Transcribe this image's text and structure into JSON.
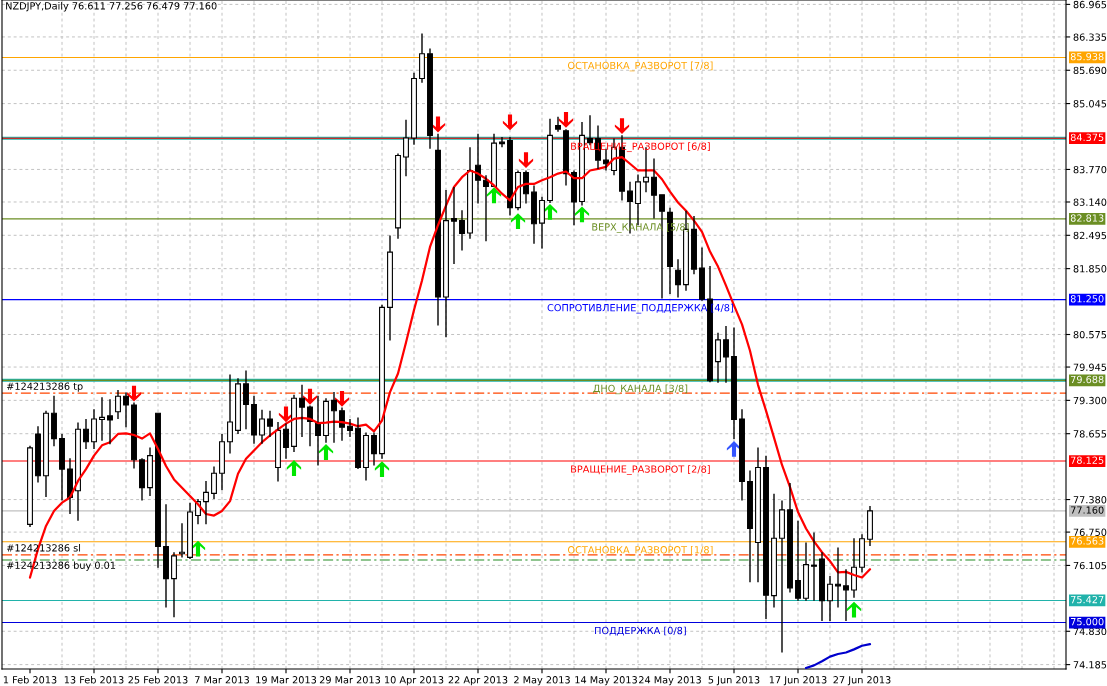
{
  "chart_data": {
    "type": "candlestick",
    "title": "NZDJPY,Daily 76.611 77.256 76.479 77.160",
    "color": "#000000",
    "categories": [
      "1 Feb 2013",
      null,
      null,
      null,
      null,
      null,
      null,
      null,
      "13 Feb 2013",
      null,
      null,
      null,
      null,
      null,
      null,
      null,
      "25 Feb 2013",
      null,
      null,
      null,
      null,
      null,
      null,
      null,
      "7 Mar 2013",
      null,
      null,
      null,
      null,
      null,
      null,
      null,
      "19 Mar 2013",
      null,
      null,
      null,
      null,
      null,
      null,
      null,
      "29 Mar 2013",
      null,
      null,
      null,
      null,
      null,
      null,
      null,
      "10 Apr 2013",
      null,
      null,
      null,
      null,
      null,
      null,
      null,
      "22 Apr 2013",
      null,
      null,
      null,
      null,
      null,
      null,
      null,
      "2 May 2013",
      null,
      null,
      null,
      null,
      null,
      null,
      null,
      "14 May 2013",
      null,
      null,
      null,
      null,
      null,
      null,
      null,
      "24 May 2013",
      null,
      null,
      null,
      null,
      null,
      null,
      null,
      "5 Jun 2013",
      null,
      null,
      null,
      null,
      null,
      null,
      null,
      "17 Jun 2013",
      null,
      null,
      null,
      null,
      null,
      null,
      null,
      "27 Jun 2013",
      null
    ],
    "ohlc": [
      [
        76.9,
        78.42,
        76.85,
        78.38
      ],
      [
        78.65,
        78.8,
        77.71,
        77.84
      ],
      [
        77.84,
        79.1,
        77.43,
        79.05
      ],
      [
        79.05,
        79.39,
        78.41,
        78.56
      ],
      [
        78.56,
        78.65,
        77.36,
        77.97
      ],
      [
        77.97,
        78.18,
        77.1,
        77.42
      ],
      [
        77.55,
        78.87,
        76.97,
        78.74
      ],
      [
        78.74,
        78.94,
        78.36,
        78.5
      ],
      [
        78.5,
        79.13,
        78.36,
        78.94
      ],
      [
        78.93,
        79.36,
        78.52,
        78.97
      ],
      [
        79.0,
        79.32,
        78.45,
        78.92
      ],
      [
        79.08,
        79.5,
        78.94,
        79.38
      ],
      [
        79.38,
        79.45,
        78.78,
        79.21
      ],
      [
        79.21,
        79.26,
        77.98,
        78.15
      ],
      [
        78.15,
        78.18,
        77.36,
        77.61
      ],
      [
        77.61,
        78.39,
        77.45,
        78.23
      ],
      [
        79.05,
        79.05,
        76.06,
        76.47
      ],
      [
        76.47,
        77.29,
        75.29,
        75.85
      ],
      [
        75.85,
        76.36,
        75.1,
        76.29
      ],
      [
        76.33,
        76.92,
        76.26,
        76.36
      ],
      [
        76.26,
        77.32,
        76.23,
        77.14
      ],
      [
        77.07,
        77.39,
        76.9,
        77.34
      ],
      [
        77.34,
        77.74,
        76.9,
        77.52
      ],
      [
        77.5,
        78.02,
        77.39,
        77.89
      ],
      [
        77.89,
        78.65,
        77.56,
        78.5
      ],
      [
        78.5,
        79.8,
        78.27,
        78.88
      ],
      [
        78.72,
        79.73,
        78.65,
        79.62
      ],
      [
        79.62,
        79.88,
        78.74,
        79.22
      ],
      [
        79.22,
        79.39,
        78.46,
        78.63
      ],
      [
        78.63,
        79.12,
        78.46,
        78.94
      ],
      [
        78.94,
        79.1,
        78.59,
        78.8
      ],
      [
        78.0,
        78.88,
        77.73,
        78.72
      ],
      [
        78.74,
        78.85,
        78.17,
        78.39
      ],
      [
        78.41,
        79.41,
        78.3,
        79.34
      ],
      [
        79.34,
        79.6,
        78.59,
        79.17
      ],
      [
        79.17,
        79.2,
        78.41,
        78.89
      ],
      [
        78.87,
        79.39,
        78.04,
        78.62
      ],
      [
        78.62,
        79.34,
        78.48,
        79.28
      ],
      [
        79.3,
        79.46,
        78.48,
        79.1
      ],
      [
        79.1,
        79.16,
        78.52,
        78.78
      ],
      [
        78.8,
        78.94,
        78.59,
        78.72
      ],
      [
        78.76,
        78.97,
        77.97,
        78.0
      ],
      [
        78.0,
        78.68,
        77.75,
        78.62
      ],
      [
        78.62,
        78.68,
        78.04,
        78.27
      ],
      [
        78.27,
        81.15,
        78.17,
        81.1
      ],
      [
        81.1,
        82.49,
        80.46,
        82.17
      ],
      [
        82.64,
        84.08,
        82.43,
        84.04
      ],
      [
        84.01,
        84.73,
        83.64,
        84.38
      ],
      [
        84.38,
        85.64,
        84.25,
        85.53
      ],
      [
        85.53,
        86.4,
        85.45,
        86.01
      ],
      [
        86.01,
        86.11,
        84.17,
        84.43
      ],
      [
        84.14,
        84.46,
        80.75,
        81.3
      ],
      [
        81.3,
        83.37,
        80.52,
        82.78
      ],
      [
        82.82,
        83.43,
        81.94,
        82.77
      ],
      [
        82.78,
        82.98,
        82.2,
        82.53
      ],
      [
        82.54,
        84.2,
        82.43,
        83.75
      ],
      [
        83.85,
        84.46,
        83.11,
        83.56
      ],
      [
        83.56,
        83.66,
        82.38,
        83.44
      ],
      [
        83.44,
        84.46,
        83.44,
        84.28
      ],
      [
        84.3,
        84.4,
        84.2,
        84.27
      ],
      [
        84.33,
        84.4,
        82.88,
        83.03
      ],
      [
        83.03,
        83.75,
        82.98,
        83.71
      ],
      [
        83.71,
        83.75,
        83.11,
        83.3
      ],
      [
        83.33,
        83.46,
        82.33,
        82.72
      ],
      [
        82.73,
        83.24,
        82.24,
        83.17
      ],
      [
        83.17,
        84.75,
        83.12,
        84.43
      ],
      [
        84.62,
        84.79,
        84.5,
        84.55
      ],
      [
        84.52,
        84.55,
        83.46,
        83.69
      ],
      [
        83.71,
        83.75,
        82.69,
        83.14
      ],
      [
        83.15,
        84.69,
        83.07,
        84.43
      ],
      [
        84.37,
        84.82,
        84.24,
        84.29
      ],
      [
        84.37,
        84.62,
        83.78,
        83.95
      ],
      [
        83.95,
        84.17,
        83.75,
        83.88
      ],
      [
        83.75,
        84.37,
        83.66,
        84.2
      ],
      [
        84.2,
        84.43,
        83.17,
        83.35
      ],
      [
        83.35,
        83.53,
        82.53,
        83.15
      ],
      [
        83.11,
        83.67,
        82.69,
        83.53
      ],
      [
        83.53,
        84.2,
        83.33,
        83.62
      ],
      [
        83.62,
        83.98,
        82.82,
        83.27
      ],
      [
        83.28,
        83.28,
        81.27,
        82.96
      ],
      [
        82.94,
        83.03,
        81.36,
        81.89
      ],
      [
        81.82,
        82.03,
        81.29,
        81.54
      ],
      [
        81.54,
        82.97,
        81.42,
        82.61
      ],
      [
        82.61,
        82.87,
        81.74,
        81.84
      ],
      [
        81.86,
        82.26,
        81.23,
        81.26
      ],
      [
        81.26,
        81.9,
        79.65,
        79.68
      ],
      [
        80.05,
        80.61,
        79.64,
        80.47
      ],
      [
        80.47,
        80.74,
        79.64,
        80.14
      ],
      [
        80.15,
        80.71,
        78.55,
        78.93
      ],
      [
        78.94,
        79.13,
        77.36,
        77.73
      ],
      [
        77.73,
        77.94,
        75.78,
        76.82
      ],
      [
        76.55,
        78.39,
        75.78,
        78.0
      ],
      [
        78.0,
        78.23,
        75.07,
        75.53
      ],
      [
        75.52,
        77.49,
        75.29,
        76.63
      ],
      [
        76.63,
        77.36,
        74.42,
        77.18
      ],
      [
        77.18,
        77.7,
        75.58,
        75.67
      ],
      [
        75.81,
        76.97,
        75.42,
        75.47
      ],
      [
        75.47,
        76.55,
        75.42,
        76.12
      ],
      [
        76.11,
        76.74,
        75.42,
        76.09
      ],
      [
        76.23,
        76.36,
        75.03,
        75.42
      ],
      [
        75.42,
        75.9,
        75.03,
        75.74
      ],
      [
        75.74,
        76.45,
        75.29,
        75.71
      ],
      [
        75.71,
        76.03,
        75.03,
        75.63
      ],
      [
        75.63,
        76.63,
        75.48,
        76.07
      ],
      [
        76.07,
        76.71,
        75.97,
        76.62
      ],
      [
        76.611,
        77.256,
        76.479,
        77.16
      ]
    ],
    "series": [
      {
        "type": "line",
        "color": "#ff0000",
        "values": [
          75.87,
          76.42,
          76.87,
          77.16,
          77.32,
          77.42,
          77.74,
          77.97,
          78.23,
          78.43,
          78.49,
          78.65,
          78.66,
          78.63,
          78.56,
          78.66,
          78.36,
          78.03,
          77.77,
          77.61,
          77.45,
          77.29,
          77.1,
          77.07,
          77.16,
          77.35,
          77.88,
          78.17,
          78.33,
          78.49,
          78.62,
          78.74,
          78.85,
          78.94,
          78.96,
          78.94,
          78.86,
          78.87,
          78.89,
          78.88,
          78.85,
          78.8,
          78.83,
          78.7,
          78.91,
          79.46,
          79.82,
          80.42,
          81.05,
          81.62,
          82.27,
          82.69,
          83.07,
          83.43,
          83.62,
          83.75,
          83.69,
          83.59,
          83.46,
          83.3,
          83.17,
          83.43,
          83.49,
          83.49,
          83.56,
          83.62,
          83.69,
          83.73,
          83.6,
          83.6,
          83.75,
          83.78,
          83.82,
          83.98,
          84.01,
          83.88,
          83.75,
          83.75,
          83.75,
          83.58,
          83.34,
          83.13,
          82.97,
          82.78,
          82.56,
          82.18,
          81.89,
          81.52,
          81.14,
          80.77,
          80.26,
          79.6,
          79.1,
          78.58,
          78.05,
          77.62,
          77.14,
          76.82,
          76.57,
          76.36,
          76.19,
          75.97,
          75.98,
          75.92,
          75.87,
          76.03
        ]
      },
      {
        "type": "line",
        "color": "#0000cd",
        "values": [
          null,
          null,
          null,
          null,
          null,
          null,
          null,
          null,
          null,
          null,
          null,
          null,
          null,
          null,
          null,
          null,
          null,
          null,
          null,
          null,
          null,
          null,
          null,
          null,
          null,
          null,
          null,
          null,
          null,
          null,
          null,
          null,
          null,
          null,
          null,
          null,
          null,
          null,
          null,
          null,
          null,
          null,
          null,
          null,
          null,
          null,
          null,
          null,
          null,
          null,
          null,
          null,
          null,
          null,
          null,
          null,
          null,
          null,
          null,
          null,
          null,
          null,
          null,
          null,
          null,
          null,
          null,
          null,
          null,
          null,
          null,
          null,
          null,
          null,
          null,
          null,
          null,
          null,
          null,
          null,
          null,
          null,
          null,
          null,
          null,
          null,
          null,
          null,
          null,
          null,
          null,
          null,
          null,
          null,
          null,
          null,
          null,
          74.12,
          74.17,
          74.25,
          74.34,
          74.39,
          74.42,
          74.48,
          74.55,
          74.58
        ]
      },
      {
        "type": "scatter",
        "color": "#ff0000",
        "marker": "triangle",
        "values": [
          null,
          null,
          null,
          null,
          null,
          null,
          null,
          null,
          null,
          null,
          null,
          null,
          null,
          79.43,
          null,
          null,
          null,
          null,
          null,
          null,
          null,
          null,
          null,
          null,
          null,
          null,
          null,
          null,
          null,
          null,
          null,
          null,
          79.03,
          null,
          null,
          79.37,
          null,
          null,
          null,
          79.33,
          null,
          null,
          null,
          null,
          null,
          null,
          null,
          null,
          null,
          null,
          null,
          84.64,
          null,
          null,
          null,
          null,
          null,
          null,
          null,
          null,
          84.68,
          null,
          83.95,
          null,
          null,
          null,
          null,
          84.73,
          null,
          null,
          null,
          null,
          null,
          null,
          84.61,
          null,
          null,
          null,
          null,
          null,
          null,
          null,
          null,
          null,
          null,
          null,
          null,
          null,
          null,
          null,
          null,
          null,
          null,
          null,
          null,
          null,
          null,
          null,
          null,
          null,
          null,
          null,
          null,
          null,
          null,
          null
        ]
      },
      {
        "type": "scatter",
        "color": "#00e600",
        "marker": "triangle",
        "values": [
          null,
          null,
          null,
          null,
          null,
          null,
          null,
          null,
          null,
          null,
          null,
          null,
          null,
          null,
          null,
          null,
          null,
          null,
          null,
          null,
          null,
          76.43,
          null,
          null,
          null,
          null,
          null,
          null,
          null,
          null,
          null,
          null,
          null,
          77.99,
          null,
          null,
          null,
          78.3,
          null,
          null,
          null,
          null,
          null,
          null,
          77.97,
          null,
          null,
          null,
          null,
          null,
          null,
          null,
          null,
          null,
          null,
          null,
          null,
          null,
          83.27,
          null,
          null,
          82.77,
          null,
          null,
          null,
          82.95,
          null,
          null,
          null,
          82.9,
          null,
          null,
          null,
          null,
          null,
          null,
          null,
          null,
          null,
          null,
          null,
          null,
          null,
          null,
          null,
          null,
          null,
          null,
          null,
          null,
          null,
          null,
          null,
          null,
          null,
          null,
          null,
          null,
          null,
          null,
          null,
          null,
          null,
          75.25,
          null,
          null
        ]
      },
      {
        "type": "scatter",
        "color": "#3355ff",
        "marker": "triangle",
        "values": [
          null,
          null,
          null,
          null,
          null,
          null,
          null,
          null,
          null,
          null,
          null,
          null,
          null,
          null,
          null,
          null,
          null,
          null,
          null,
          null,
          null,
          null,
          null,
          null,
          null,
          null,
          null,
          null,
          null,
          null,
          null,
          null,
          null,
          null,
          null,
          null,
          null,
          null,
          null,
          null,
          null,
          null,
          null,
          null,
          null,
          null,
          null,
          null,
          null,
          null,
          null,
          null,
          null,
          null,
          null,
          null,
          null,
          null,
          null,
          null,
          null,
          null,
          null,
          null,
          null,
          null,
          null,
          null,
          null,
          null,
          null,
          null,
          null,
          null,
          null,
          null,
          null,
          null,
          null,
          null,
          null,
          null,
          null,
          null,
          null,
          null,
          null,
          null,
          78.36,
          null,
          null,
          null,
          null,
          null,
          null,
          null,
          null,
          null,
          null,
          null,
          null,
          null,
          null,
          null,
          null,
          null
        ]
      }
    ],
    "ylim": [
      74.1,
      87.05
    ],
    "yticks": [
      86.965,
      86.335,
      {
        "value": 85.69,
        "label": "85.690"
      },
      85.045,
      {
        "value": 83.77,
        "label": "83.770"
      },
      {
        "value": 83.14,
        "label": "83.140"
      },
      82.495,
      {
        "value": 81.85,
        "label": "81.850"
      },
      80.575,
      79.945,
      {
        "value": 79.3,
        "label": "79.300"
      },
      78.655,
      {
        "value": 77.38,
        "label": "77.380"
      },
      {
        "value": 76.75,
        "label": "76.750"
      },
      76.105,
      {
        "value": 74.83,
        "label": "74.830"
      },
      74.185
    ],
    "grid": true,
    "ref_lines": [
      {
        "axis": "y",
        "value": 85.938,
        "label": "85.938",
        "color": "#ffa500"
      },
      {
        "axis": "y",
        "value": 84.375,
        "label": "84.375",
        "color": "#ff0000"
      },
      {
        "axis": "y",
        "value": 84.375,
        "color": "#20b2aa"
      },
      {
        "axis": "y",
        "value": 82.813,
        "label": "82.813",
        "color": "#6b8e23"
      },
      {
        "axis": "y",
        "value": 81.25,
        "label": "81.250",
        "color": "#0000ff"
      },
      {
        "axis": "y",
        "value": 79.688,
        "label": "79.688",
        "color": "#6b8e23"
      },
      {
        "axis": "y",
        "value": 79.688,
        "color": "#20b2aa"
      },
      {
        "axis": "y",
        "value": 78.125,
        "label": "78.125",
        "color": "#ff0000"
      },
      {
        "axis": "y",
        "value": 77.16,
        "label": "77.160",
        "color": "#c0c0c0"
      },
      {
        "axis": "y",
        "value": 76.563,
        "label": "76.563",
        "color": "#ffa500"
      },
      {
        "axis": "y",
        "value": 75.427,
        "label": "75.427",
        "color": "#20b2aa"
      },
      {
        "axis": "y",
        "value": 75.0,
        "label": "75.000",
        "color": "#0000dd"
      },
      {
        "axis": "y",
        "value": 79.44,
        "label": "#124213286 tp",
        "color": "#ff4500",
        "line_style": "dashed"
      },
      {
        "axis": "y",
        "value": 76.31,
        "label": "#124213286 sl",
        "color": "#ff4500",
        "line_style": "dashed"
      },
      {
        "axis": "y",
        "value": 76.21,
        "label": "#124213286 buy 0.01",
        "color": "#228b22",
        "line_style": "dashed"
      }
    ],
    "annotations": [
      {
        "text": "ОСТАНОВКА_РАЗВОРОТ [7/8]",
        "y": 85.938
      },
      {
        "text": "ВРАЩЕНИЕ_РАЗВОРОТ [6/8]",
        "y": 84.375
      },
      {
        "text": "ВЕРХ_КАНАЛА [5/8]",
        "y": 82.813
      },
      {
        "text": "СОПРОТИВЛЕНИЕ_ПОДДЕРЖКА [4/8]",
        "y": 81.25
      },
      {
        "text": "ДНО_КАНАЛА [3/8]",
        "y": 79.688
      },
      {
        "text": "ВРАЩЕНИЕ_РАЗВОРОТ [2/8]",
        "y": 78.125
      },
      {
        "text": "ОСТАНОВКА_РАЗВОРОТ [1/8]",
        "y": 76.563
      },
      {
        "text": "ПОДДЕРЖКА [0/8]",
        "y": 75.0
      }
    ]
  }
}
